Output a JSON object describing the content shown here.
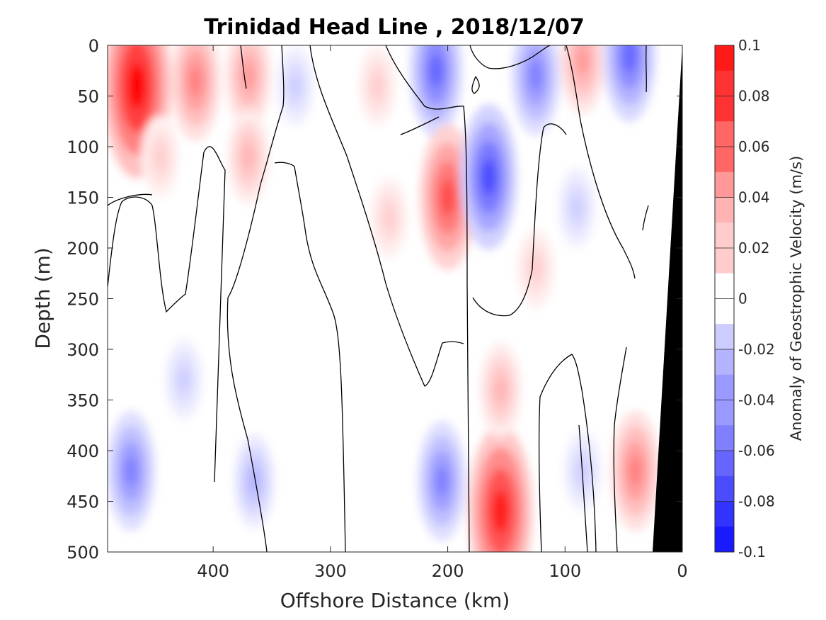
{
  "chart_data": {
    "type": "heatmap",
    "title": "Trinidad Head Line , 2018/12/07",
    "xlabel": "Offshore Distance (km)",
    "ylabel": "Depth (m)",
    "colorbar_label": "Anomaly of Geostrophic Velocity (m/s)",
    "x_reversed": true,
    "y_reversed": true,
    "xlim": [
      0,
      490
    ],
    "ylim": [
      0,
      500
    ],
    "x_ticks": [
      "400",
      "300",
      "200",
      "100",
      "0"
    ],
    "x_tick_values": [
      400,
      300,
      200,
      100,
      0
    ],
    "y_ticks": [
      "0",
      "50",
      "100",
      "150",
      "200",
      "250",
      "300",
      "350",
      "400",
      "450",
      "500"
    ],
    "y_tick_values": [
      0,
      50,
      100,
      150,
      200,
      250,
      300,
      350,
      400,
      450,
      500
    ],
    "colorbar_ticks": [
      "0.1",
      "0.08",
      "0.06",
      "0.04",
      "0.02",
      "0",
      "-0.02",
      "-0.04",
      "-0.06",
      "-0.08",
      "-0.1"
    ],
    "colorbar_range": [
      -0.1,
      0.1
    ],
    "colormap": {
      "negative_max": "#0000ff",
      "zero": "#ffffff",
      "positive_max": "#ff0000"
    },
    "bathymetry_color": "#000000",
    "features": [
      {
        "kind": "positive",
        "x": 465,
        "depth": 40,
        "value": 0.1
      },
      {
        "kind": "positive",
        "x": 445,
        "depth": 110,
        "value": 0.02
      },
      {
        "kind": "positive",
        "x": 415,
        "depth": 35,
        "value": 0.05
      },
      {
        "kind": "positive",
        "x": 370,
        "depth": 30,
        "value": 0.04
      },
      {
        "kind": "positive",
        "x": 370,
        "depth": 110,
        "value": 0.03
      },
      {
        "kind": "negative",
        "x": 330,
        "depth": 40,
        "value": -0.02
      },
      {
        "kind": "positive",
        "x": 260,
        "depth": 40,
        "value": 0.02
      },
      {
        "kind": "negative",
        "x": 210,
        "depth": 25,
        "value": -0.06
      },
      {
        "kind": "positive",
        "x": 200,
        "depth": 150,
        "value": 0.07
      },
      {
        "kind": "positive",
        "x": 250,
        "depth": 170,
        "value": 0.02
      },
      {
        "kind": "negative",
        "x": 165,
        "depth": 130,
        "value": -0.07
      },
      {
        "kind": "negative",
        "x": 125,
        "depth": 30,
        "value": -0.05
      },
      {
        "kind": "positive",
        "x": 85,
        "depth": 15,
        "value": 0.04
      },
      {
        "kind": "positive",
        "x": 125,
        "depth": 220,
        "value": 0.02
      },
      {
        "kind": "negative",
        "x": 45,
        "depth": 10,
        "value": -0.06
      },
      {
        "kind": "negative",
        "x": 90,
        "depth": 160,
        "value": -0.02
      },
      {
        "kind": "negative",
        "x": 470,
        "depth": 420,
        "value": -0.05
      },
      {
        "kind": "negative",
        "x": 425,
        "depth": 330,
        "value": -0.02
      },
      {
        "kind": "negative",
        "x": 365,
        "depth": 430,
        "value": -0.03
      },
      {
        "kind": "negative",
        "x": 205,
        "depth": 430,
        "value": -0.05
      },
      {
        "kind": "positive",
        "x": 155,
        "depth": 460,
        "value": 0.09
      },
      {
        "kind": "positive",
        "x": 155,
        "depth": 340,
        "value": 0.03
      },
      {
        "kind": "negative",
        "x": 85,
        "depth": 420,
        "value": -0.02
      },
      {
        "kind": "positive",
        "x": 40,
        "depth": 420,
        "value": 0.05
      }
    ]
  }
}
